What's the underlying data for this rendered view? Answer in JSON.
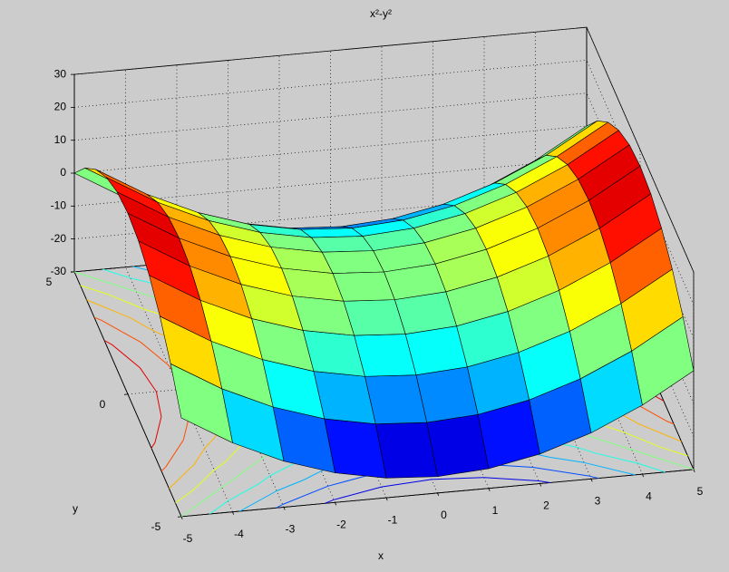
{
  "chart_data": {
    "type": "surface",
    "title": "x²-y²",
    "x_label": "x",
    "y_label": "y",
    "x": [
      -5,
      -4,
      -3,
      -2,
      -1,
      0,
      1,
      2,
      3,
      4,
      5
    ],
    "y": [
      -5,
      -4,
      -3,
      -2,
      -1,
      0,
      1,
      2,
      3,
      4,
      5
    ],
    "z": [
      [
        0,
        -9,
        -16,
        -21,
        -24,
        -25,
        -24,
        -21,
        -16,
        -9,
        0
      ],
      [
        9,
        0,
        -7,
        -12,
        -15,
        -16,
        -15,
        -12,
        -7,
        0,
        9
      ],
      [
        16,
        7,
        0,
        -5,
        -8,
        -9,
        -8,
        -5,
        0,
        7,
        16
      ],
      [
        21,
        12,
        5,
        0,
        -3,
        -4,
        -3,
        0,
        5,
        12,
        21
      ],
      [
        24,
        15,
        8,
        3,
        0,
        -1,
        0,
        3,
        8,
        15,
        24
      ],
      [
        25,
        16,
        9,
        4,
        1,
        0,
        1,
        4,
        9,
        16,
        25
      ],
      [
        24,
        15,
        8,
        3,
        0,
        -1,
        0,
        3,
        8,
        15,
        24
      ],
      [
        21,
        12,
        5,
        0,
        -3,
        -4,
        -3,
        0,
        5,
        12,
        21
      ],
      [
        16,
        7,
        0,
        -5,
        -8,
        -9,
        -8,
        -5,
        0,
        7,
        16
      ],
      [
        9,
        0,
        -7,
        -12,
        -15,
        -16,
        -15,
        -12,
        -7,
        0,
        9
      ],
      [
        0,
        -9,
        -16,
        -21,
        -24,
        -25,
        -24,
        -21,
        -16,
        -9,
        0
      ]
    ],
    "xlim": [
      -5,
      5
    ],
    "ylim": [
      -5,
      5
    ],
    "zlim": [
      -30,
      30
    ],
    "xticks": [
      -5,
      -4,
      -3,
      -2,
      -1,
      0,
      1,
      2,
      3,
      4,
      5
    ],
    "yticks": [
      -5,
      0,
      5
    ],
    "zticks": [
      -30,
      -20,
      -10,
      0,
      10,
      20,
      30
    ],
    "colormap": "jet",
    "contour_levels": [
      -20,
      -15,
      -10,
      -5,
      0,
      5,
      10,
      15,
      20
    ],
    "grid": true
  }
}
